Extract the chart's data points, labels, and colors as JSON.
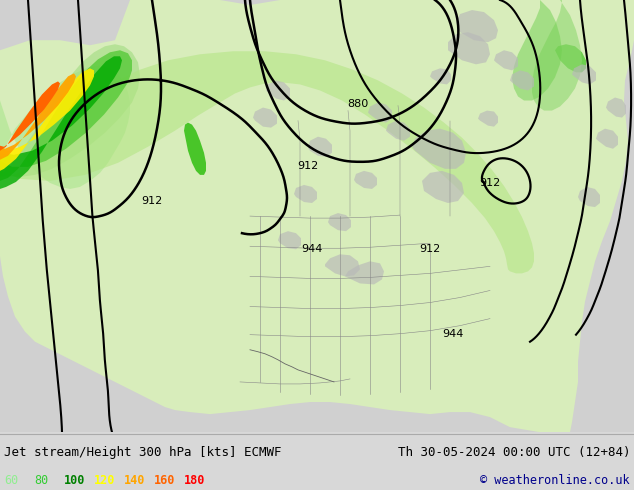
{
  "title_left": "Jet stream/Height 300 hPa [kts] ECMWF",
  "title_right": "Th 30-05-2024 00:00 UTC (12+84)",
  "copyright": "© weatheronline.co.uk",
  "legend_values": [
    60,
    80,
    100,
    120,
    140,
    160,
    180
  ],
  "legend_colors": [
    "#90ee90",
    "#32cd32",
    "#008000",
    "#ffff00",
    "#ffa500",
    "#ff6400",
    "#ff0000"
  ],
  "bg_color": "#d8d8d8",
  "fig_width": 6.34,
  "fig_height": 4.9,
  "dpi": 100,
  "title_fontsize": 9.0,
  "legend_fontsize": 8.5,
  "copyright_color": "#00008b",
  "title_color": "#000000",
  "map_light_gray": "#d0d0d0",
  "map_land_light": "#d8edbb",
  "map_land_green": "#c8e8a0",
  "map_ocean": "#d0d0d0",
  "jet_lgreen": "#b4e6a0",
  "jet_mgreen": "#64d040",
  "jet_dgreen": "#009600",
  "jet_yellow": "#ffff00",
  "jet_orange": "#ffa500",
  "jet_red": "#ff6400"
}
